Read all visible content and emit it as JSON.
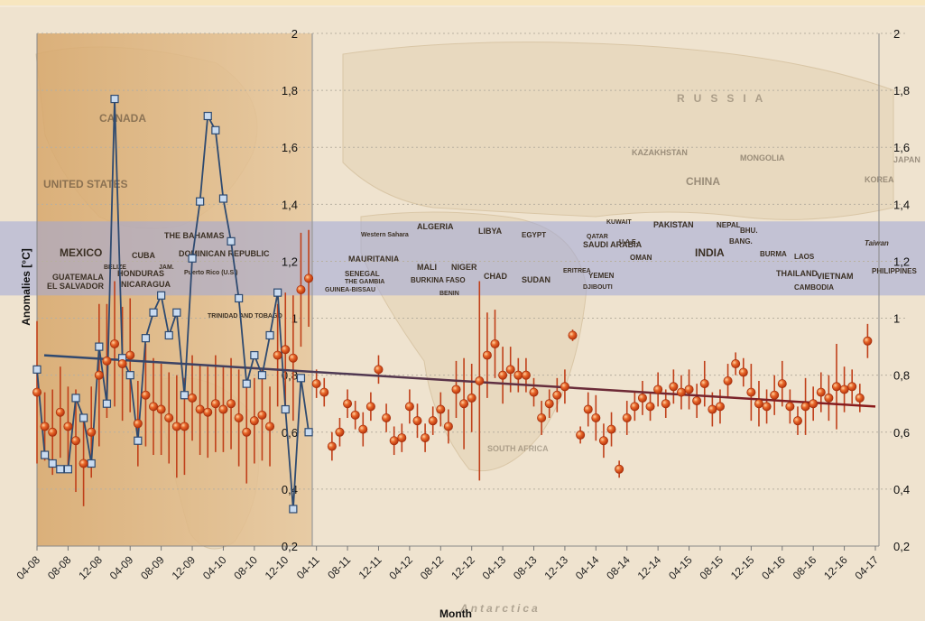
{
  "chart_data": {
    "type": "scatter",
    "xlabel": "Month",
    "ylabel": "Anomalies [°C]",
    "ylim": [
      0.2,
      2
    ],
    "y_ticks": [
      "0,2",
      "0,4",
      "0,6",
      "0,8",
      "1",
      "1,2",
      "1,4",
      "1,6",
      "1,8",
      "2"
    ],
    "x_ticks": [
      "04-08",
      "08-08",
      "12-08",
      "04-09",
      "08-09",
      "12-09",
      "04-10",
      "08-10",
      "12-10",
      "04-11",
      "08-11",
      "12-11",
      "04-12",
      "08-12",
      "12-12",
      "04-13",
      "08-13",
      "12-13",
      "04-14",
      "08-14",
      "12-14",
      "04-15",
      "08-15",
      "12-15",
      "04-16",
      "08-16",
      "12-16",
      "04-17"
    ],
    "series": [
      {
        "values": [
          0.82,
          0.52,
          0.49,
          0.47,
          0.47,
          0.72,
          0.65,
          0.49,
          0.9,
          0.7,
          1.77,
          0.86,
          0.8,
          0.57,
          0.93,
          1.02,
          1.08,
          0.94,
          1.02,
          0.73,
          1.21,
          1.41,
          1.71,
          1.66,
          1.42,
          1.27,
          1.07,
          0.77,
          0.87,
          0.8,
          0.94,
          1.09,
          0.68,
          0.33,
          0.79,
          0.6
        ],
        "color": "#2e4a70"
      },
      {
        "values": [
          0.74,
          0.62,
          0.6,
          0.67,
          0.62,
          0.57,
          0.49,
          0.6,
          0.8,
          0.85,
          0.91,
          0.84,
          0.87,
          0.63,
          0.73,
          0.69,
          0.68,
          0.65,
          0.62,
          0.62,
          0.72,
          0.68,
          0.67,
          0.7,
          0.68,
          0.7,
          0.65,
          0.6,
          0.64,
          0.66,
          0.62,
          0.87,
          0.89,
          0.86,
          1.1,
          1.14,
          0.77,
          0.74,
          0.55,
          0.6,
          0.7,
          0.66,
          0.61,
          0.69,
          0.82,
          0.65,
          0.57,
          0.58,
          0.69,
          0.64,
          0.58,
          0.64,
          0.68,
          0.62,
          0.75,
          0.7,
          0.72,
          0.78,
          0.87,
          0.91,
          0.8,
          0.82,
          0.8,
          0.8,
          0.74,
          0.65,
          0.7,
          0.73,
          0.76,
          0.94,
          0.59,
          0.68,
          0.65,
          0.57,
          0.61,
          0.47,
          0.65,
          0.69,
          0.72,
          0.69,
          0.75,
          0.7,
          0.76,
          0.74,
          0.75,
          0.71,
          0.77,
          0.68,
          0.69,
          0.78,
          0.84,
          0.81,
          0.74,
          0.7,
          0.69,
          0.73,
          0.77,
          0.69,
          0.64,
          0.69,
          0.7,
          0.74,
          0.72,
          0.76,
          0.75,
          0.76,
          0.72,
          0.92
        ],
        "error": [
          0.25,
          0.12,
          0.15,
          0.16,
          0.14,
          0.18,
          0.15,
          0.16,
          0.25,
          0.2,
          0.22,
          0.2,
          0.2,
          0.15,
          0.18,
          0.17,
          0.16,
          0.16,
          0.18,
          0.17,
          0.15,
          0.16,
          0.16,
          0.17,
          0.15,
          0.16,
          0.17,
          0.18,
          0.15,
          0.16,
          0.14,
          0.18,
          0.2,
          0.22,
          0.2,
          0.17,
          0.05,
          0.05,
          0.05,
          0.05,
          0.05,
          0.05,
          0.06,
          0.05,
          0.05,
          0.05,
          0.05,
          0.05,
          0.06,
          0.06,
          0.05,
          0.05,
          0.06,
          0.06,
          0.1,
          0.16,
          0.12,
          0.35,
          0.15,
          0.12,
          0.1,
          0.08,
          0.06,
          0.06,
          0.05,
          0.06,
          0.05,
          0.06,
          0.06,
          0.02,
          0.03,
          0.06,
          0.08,
          0.06,
          0.06,
          0.03,
          0.06,
          0.05,
          0.06,
          0.05,
          0.06,
          0.05,
          0.06,
          0.06,
          0.07,
          0.06,
          0.08,
          0.06,
          0.06,
          0.06,
          0.04,
          0.05,
          0.1,
          0.08,
          0.06,
          0.07,
          0.08,
          0.06,
          0.05,
          0.1,
          0.06,
          0.07,
          0.08,
          0.15,
          0.08,
          0.06,
          0.05,
          0.06
        ],
        "color": "#d94a1e",
        "error_color": "#c0401a"
      }
    ],
    "trend_line": {
      "y_start": 0.87,
      "y_end": 0.69
    },
    "highlight_band": {
      "from": 1.08,
      "to": 1.34
    },
    "grid": true
  },
  "map_labels": [
    "UNITED STATES",
    "CANADA",
    "MEXICO",
    "CUBA",
    "THE BAHAMAS",
    "DOMINICAN REPUBLIC",
    "HONDURAS",
    "NICARAGUA",
    "GUATEMALA",
    "EL SALVADOR",
    "BELIZE",
    "JAM.",
    "Puerto Rico (U.S.)",
    "TRINIDAD AND TOBAGO",
    "ALGERIA",
    "LIBYA",
    "EGYPT",
    "MAURITANIA",
    "MALI",
    "NIGER",
    "CHAD",
    "SUDAN",
    "SENEGAL",
    "THE GAMBIA",
    "GUINEA-BISSAU",
    "BURKINA FASO",
    "BENIN",
    "Western Sahara",
    "SAUDI ARABIA",
    "QATAR",
    "U.A.E.",
    "OMAN",
    "YEMEN",
    "ERITREA",
    "DJIBOUTI",
    "KUWAIT",
    "PAKISTAN",
    "NEPAL",
    "BHU.",
    "INDIA",
    "BANG.",
    "BURMA",
    "LAOS",
    "THAILAND",
    "VIETNAM",
    "CAMBODIA",
    "PHILIPPINES",
    "Taiwan",
    "RUSSIA",
    "KAZAKHSTAN",
    "MONGOLIA",
    "CHINA",
    "KOREA",
    "JAPAN",
    "SOUTH AFRICA",
    "Antarctica"
  ],
  "colors": {
    "background": "#f4ead9",
    "tan_region": "#d9ae78",
    "band": "#9ea7d8",
    "blue_series": "#2e4a70",
    "red_series": "#d94a1e"
  }
}
